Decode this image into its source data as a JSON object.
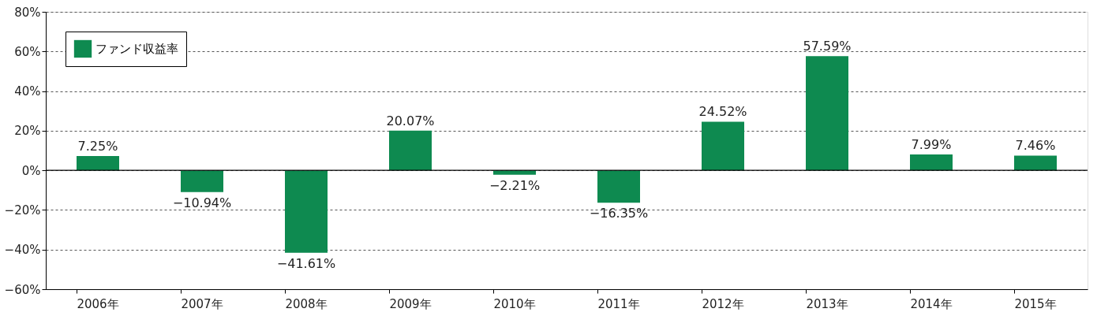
{
  "chart_data": {
    "type": "bar",
    "categories": [
      "2006年",
      "2007年",
      "2008年",
      "2009年",
      "2010年",
      "2011年",
      "2012年",
      "2013年",
      "2014年",
      "2015年"
    ],
    "series": [
      {
        "name": "ファンド収益率",
        "color": "#0e8a50",
        "values": [
          7.25,
          -10.94,
          -41.61,
          20.07,
          -2.21,
          -16.35,
          24.52,
          57.59,
          7.99,
          7.46
        ],
        "value_labels": [
          "7.25%",
          "−10.94%",
          "−41.61%",
          "20.07%",
          "−2.21%",
          "−16.35%",
          "24.52%",
          "57.59%",
          "7.99%",
          "7.46%"
        ]
      }
    ],
    "ylim": [
      -60,
      80
    ],
    "yticks": [
      {
        "value": -60,
        "label": "−60%"
      },
      {
        "value": -40,
        "label": "−40%"
      },
      {
        "value": -20,
        "label": "−20%"
      },
      {
        "value": 0,
        "label": "0%"
      },
      {
        "value": 20,
        "label": "20%"
      },
      {
        "value": 40,
        "label": "40%"
      },
      {
        "value": 60,
        "label": "60%"
      },
      {
        "value": 80,
        "label": "80%"
      }
    ],
    "grid": "y",
    "legend": "top left",
    "ref_lines": [
      {
        "axis": "y",
        "value": 0,
        "color": "#000000"
      }
    ]
  }
}
